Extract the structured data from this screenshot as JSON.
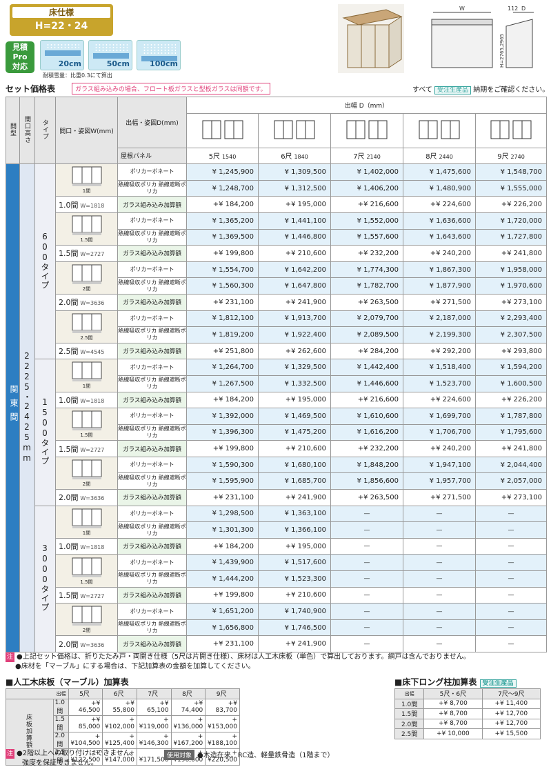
{
  "header": {
    "title": "床仕様",
    "height": "H=22・24"
  },
  "badge": {
    "l1": "見積",
    "l2": "Pro",
    "l3": "対応"
  },
  "snow": [
    {
      "label": "20cm"
    },
    {
      "label": "50cm"
    },
    {
      "label": "100cm"
    }
  ],
  "snow_note": "耐積雪量：比重0.3にて算出",
  "diagram": {
    "w": "W",
    "d": "D",
    "dim112": "112",
    "h": "H=2765,2965"
  },
  "section_title": "セット価格表",
  "glass_note": "ガラス組み込みの場合、フロート板ガラスと型板ガラスは同額です。",
  "right_note_pre": "すべて",
  "order_tag": "受注生産品",
  "right_note_post": "納期をご確認ください。",
  "cols": {
    "madori": "間型",
    "kaikou": "間口高さ",
    "type": "タイプ",
    "door": "間口・姿図W(mm)",
    "depth": "出幅・姿図D(mm)",
    "depth_hdr": "出幅 D（mm）",
    "roof": "屋根パネル"
  },
  "shaku": [
    {
      "s": "5尺",
      "mm": "1540"
    },
    {
      "s": "6尺",
      "mm": "1840"
    },
    {
      "s": "7尺",
      "mm": "2140"
    },
    {
      "s": "8尺",
      "mm": "2440"
    },
    {
      "s": "9尺",
      "mm": "2740"
    }
  ],
  "region": "関東間",
  "height_text": "2225・2425mm",
  "labels": {
    "poly": "ポリカーボネート",
    "heat": "熱線吸収ポリカ 熱線遮断ポリカ",
    "glass": "ガラス組み込み加算額"
  },
  "types": [
    {
      "name": "600タイプ",
      "groups": [
        {
          "ken": "1.0間",
          "w": "W=1818",
          "cap": "1間",
          "poly": [
            "¥ 1,245,900",
            "¥ 1,309,500",
            "¥ 1,402,000",
            "¥ 1,475,600",
            "¥ 1,548,700"
          ],
          "heat": [
            "¥ 1,248,700",
            "¥ 1,312,500",
            "¥ 1,406,200",
            "¥ 1,480,900",
            "¥ 1,555,000"
          ],
          "glass": [
            "+¥ 184,200",
            "+¥ 195,000",
            "+¥ 216,600",
            "+¥ 224,600",
            "+¥ 226,200"
          ]
        },
        {
          "ken": "1.5間",
          "w": "W=2727",
          "cap": "1.5間",
          "poly": [
            "¥ 1,365,200",
            "¥ 1,441,100",
            "¥ 1,552,000",
            "¥ 1,636,600",
            "¥ 1,720,000"
          ],
          "heat": [
            "¥ 1,369,500",
            "¥ 1,446,800",
            "¥ 1,557,600",
            "¥ 1,643,600",
            "¥ 1,727,800"
          ],
          "glass": [
            "+¥ 199,800",
            "+¥ 210,600",
            "+¥ 232,200",
            "+¥ 240,200",
            "+¥ 241,800"
          ]
        },
        {
          "ken": "2.0間",
          "w": "W=3636",
          "cap": "2間",
          "poly": [
            "¥ 1,554,700",
            "¥ 1,642,200",
            "¥ 1,774,300",
            "¥ 1,867,300",
            "¥ 1,958,000"
          ],
          "heat": [
            "¥ 1,560,300",
            "¥ 1,647,800",
            "¥ 1,782,700",
            "¥ 1,877,900",
            "¥ 1,970,600"
          ],
          "glass": [
            "+¥ 231,100",
            "+¥ 241,900",
            "+¥ 263,500",
            "+¥ 271,500",
            "+¥ 273,100"
          ]
        },
        {
          "ken": "2.5間",
          "w": "W=4545",
          "cap": "2.5間",
          "poly": [
            "¥ 1,812,100",
            "¥ 1,913,700",
            "¥ 2,079,700",
            "¥ 2,187,000",
            "¥ 2,293,400"
          ],
          "heat": [
            "¥ 1,819,200",
            "¥ 1,922,400",
            "¥ 2,089,500",
            "¥ 2,199,300",
            "¥ 2,307,500"
          ],
          "glass": [
            "+¥ 251,800",
            "+¥ 262,600",
            "+¥ 284,200",
            "+¥ 292,200",
            "+¥ 293,800"
          ]
        }
      ]
    },
    {
      "name": "1500タイプ",
      "groups": [
        {
          "ken": "1.0間",
          "w": "W=1818",
          "cap": "1間",
          "poly": [
            "¥ 1,264,700",
            "¥ 1,329,500",
            "¥ 1,442,400",
            "¥ 1,518,400",
            "¥ 1,594,200"
          ],
          "heat": [
            "¥ 1,267,500",
            "¥ 1,332,500",
            "¥ 1,446,600",
            "¥ 1,523,700",
            "¥ 1,600,500"
          ],
          "glass": [
            "+¥ 184,200",
            "+¥ 195,000",
            "+¥ 216,600",
            "+¥ 224,600",
            "+¥ 226,200"
          ]
        },
        {
          "ken": "1.5間",
          "w": "W=2727",
          "cap": "1.5間",
          "poly": [
            "¥ 1,392,000",
            "¥ 1,469,500",
            "¥ 1,610,600",
            "¥ 1,699,700",
            "¥ 1,787,800"
          ],
          "heat": [
            "¥ 1,396,300",
            "¥ 1,475,200",
            "¥ 1,616,200",
            "¥ 1,706,700",
            "¥ 1,795,600"
          ],
          "glass": [
            "+¥ 199,800",
            "+¥ 210,600",
            "+¥ 232,200",
            "+¥ 240,200",
            "+¥ 241,800"
          ]
        },
        {
          "ken": "2.0間",
          "w": "W=3636",
          "cap": "2間",
          "poly": [
            "¥ 1,590,300",
            "¥ 1,680,100",
            "¥ 1,848,200",
            "¥ 1,947,100",
            "¥ 2,044,400"
          ],
          "heat": [
            "¥ 1,595,900",
            "¥ 1,685,700",
            "¥ 1,856,600",
            "¥ 1,957,700",
            "¥ 2,057,000"
          ],
          "glass": [
            "+¥ 231,100",
            "+¥ 241,900",
            "+¥ 263,500",
            "+¥ 271,500",
            "+¥ 273,100"
          ]
        }
      ]
    },
    {
      "name": "3000タイプ",
      "groups": [
        {
          "ken": "1.0間",
          "w": "W=1818",
          "cap": "1間",
          "poly": [
            "¥ 1,298,500",
            "¥ 1,363,100",
            "—",
            "—",
            "—"
          ],
          "heat": [
            "¥ 1,301,300",
            "¥ 1,366,100",
            "—",
            "—",
            "—"
          ],
          "glass": [
            "+¥ 184,200",
            "+¥ 195,000",
            "—",
            "—",
            "—"
          ]
        },
        {
          "ken": "1.5間",
          "w": "W=2727",
          "cap": "1.5間",
          "poly": [
            "¥ 1,439,900",
            "¥ 1,517,600",
            "—",
            "—",
            "—"
          ],
          "heat": [
            "¥ 1,444,200",
            "¥ 1,523,300",
            "—",
            "—",
            "—"
          ],
          "glass": [
            "+¥ 199,800",
            "+¥ 210,600",
            "—",
            "—",
            "—"
          ]
        },
        {
          "ken": "2.0間",
          "w": "W=3636",
          "cap": "2間",
          "poly": [
            "¥ 1,651,200",
            "¥ 1,740,900",
            "—",
            "—",
            "—"
          ],
          "heat": [
            "¥ 1,656,800",
            "¥ 1,746,500",
            "—",
            "—",
            "—"
          ],
          "glass": [
            "+¥ 231,100",
            "+¥ 241,900",
            "—",
            "—",
            "—"
          ]
        }
      ]
    }
  ],
  "notes_label": "注",
  "notes": [
    "●上記セット価格は、折りたたみ戸・両開き仕様（5尺は片開き仕様）、床材は人工木床板（単色）で算出しております。網戸は含んでおりません。",
    "●床材を「マーブル」にする場合は、下記加算表の金額を加算してください。"
  ],
  "marble": {
    "title": "■人工木床板（マーブル）加算表",
    "corner_top": "出幅",
    "corner_bot": "間口",
    "side": "床板加算額",
    "cols": [
      "5尺",
      "6尺",
      "7尺",
      "8尺",
      "9尺"
    ],
    "rows": [
      {
        "ken": "1.0間",
        "v": [
          "+¥ 46,500",
          "+¥ 55,800",
          "+¥ 65,100",
          "+¥ 74,400",
          "+¥ 83,700"
        ]
      },
      {
        "ken": "1.5間",
        "v": [
          "+¥ 85,000",
          "+¥102,000",
          "+¥119,000",
          "+¥136,000",
          "+¥153,000"
        ]
      },
      {
        "ken": "2.0間",
        "v": [
          "+¥104,500",
          "+¥125,400",
          "+¥146,300",
          "+¥167,200",
          "+¥188,100"
        ]
      },
      {
        "ken": "2.5間",
        "v": [
          "+¥122,500",
          "+¥147,000",
          "+¥171,500",
          "+¥196,000",
          "+¥220,500"
        ]
      }
    ]
  },
  "post": {
    "title": "■床下ロング柱加算表",
    "tag": "受注生産品",
    "corner_top": "出幅",
    "corner_bot": "間口",
    "cols": [
      "5尺・6尺",
      "7尺〜9尺"
    ],
    "rows": [
      {
        "ken": "1.0間",
        "v": [
          "+¥ 8,700",
          "+¥ 11,400"
        ]
      },
      {
        "ken": "1.5間",
        "v": [
          "+¥ 8,700",
          "+¥ 12,700"
        ]
      },
      {
        "ken": "2.0間",
        "v": [
          "+¥ 8,700",
          "+¥ 12,700"
        ]
      },
      {
        "ken": "2.5間",
        "v": [
          "+¥ 10,000",
          "+¥ 15,500"
        ]
      }
    ]
  },
  "bottom": {
    "note1": "●2階以上への取り付けはできません。",
    "note2": "強度を保証できません。",
    "usage_label": "使用対象",
    "usage": "●木造在来、RC造、軽量鉄骨造（1階まで）"
  },
  "colors": {
    "gold": "#c8a42c",
    "blue": "#2d7ec2",
    "pink": "#e0407a",
    "lightblue": "#e3f1fa",
    "green": "#3a9a3c"
  }
}
